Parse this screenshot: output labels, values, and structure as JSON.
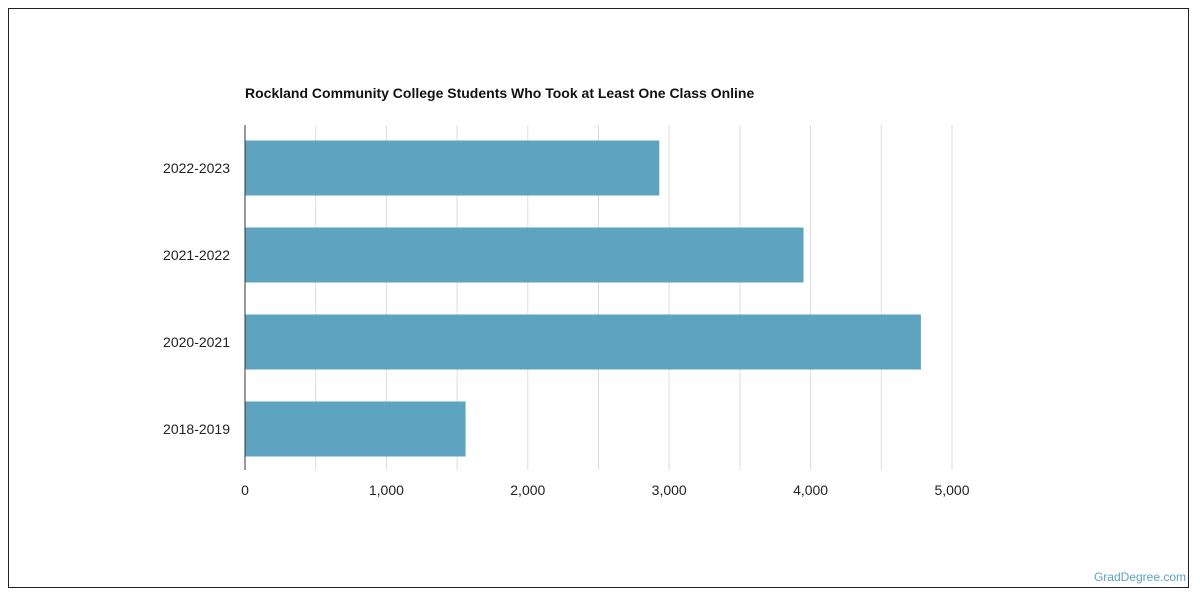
{
  "chart_data": {
    "type": "bar",
    "orientation": "horizontal",
    "title": "Rockland Community College Students Who Took at Least One Class Online",
    "categories": [
      "2022-2023",
      "2021-2022",
      "2020-2021",
      "2018-2019"
    ],
    "values": [
      2930,
      3950,
      4780,
      1560
    ],
    "xlim": [
      0,
      5000
    ],
    "xticks": [
      0,
      1000,
      2000,
      3000,
      4000,
      5000
    ],
    "xtick_labels": [
      "0",
      "1,000",
      "2,000",
      "3,000",
      "4,000",
      "5,000"
    ],
    "xlabel": "",
    "ylabel": "",
    "grid": true,
    "bar_color": "#5ea3bf"
  },
  "watermark": "GradDegree.com"
}
